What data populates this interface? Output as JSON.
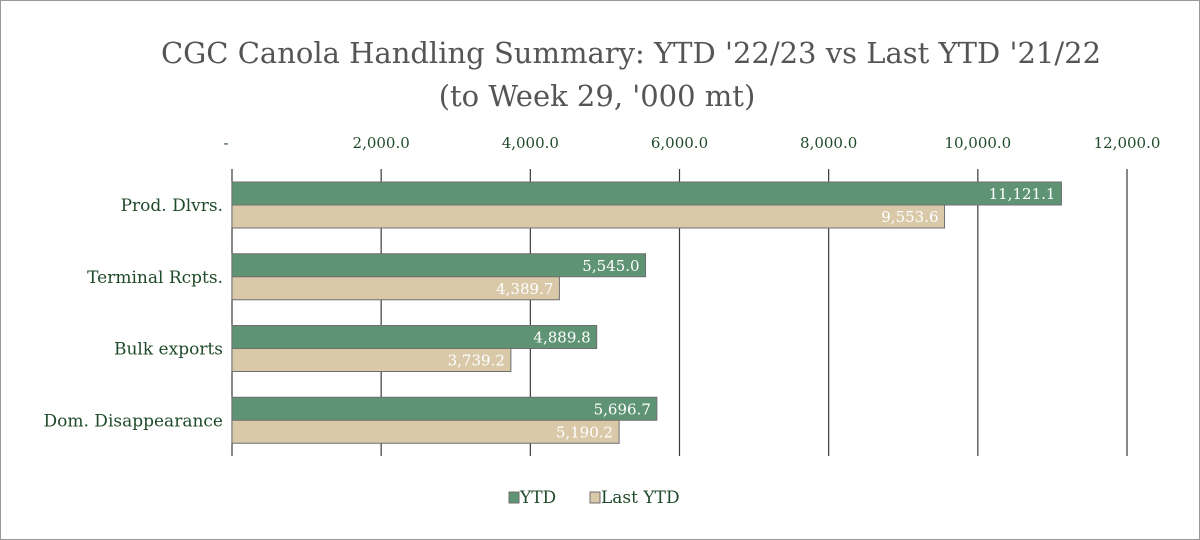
{
  "chart_data": {
    "type": "bar",
    "orientation": "horizontal",
    "title": "CGC Canola Handling Summary: YTD '22/23 vs Last YTD '21/22",
    "subtitle": "(to Week 29, '000 mt)",
    "categories": [
      "Prod. Dlvrs.",
      "Terminal Rcpts.",
      "Bulk exports",
      "Dom. Disappearance"
    ],
    "series": [
      {
        "name": "YTD",
        "color": "#5e9474",
        "values": [
          11121.1,
          5545.0,
          4889.8,
          5696.7
        ],
        "labels": [
          "11,121.1",
          "5,545.0",
          "4,889.8",
          "5,696.7"
        ]
      },
      {
        "name": "Last YTD",
        "color": "#d9c9a8",
        "values": [
          9553.6,
          4389.7,
          3739.2,
          5190.2
        ],
        "labels": [
          "9,553.6",
          "4,389.7",
          "3,739.2",
          "5,190.2"
        ]
      }
    ],
    "x_ticks": [
      0,
      2000,
      4000,
      6000,
      8000,
      10000,
      12000
    ],
    "x_tick_labels": [
      "-",
      "2,000.0",
      "4,000.0",
      "6,000.0",
      "8,000.0",
      "10,000.0",
      "12,000.0"
    ],
    "xlim": [
      0,
      12000
    ],
    "axis_position": "top",
    "grid": true,
    "legend_position": "bottom"
  }
}
